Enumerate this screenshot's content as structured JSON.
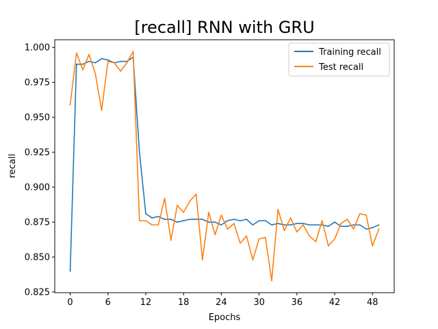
{
  "chart_data": {
    "type": "line",
    "title": "[recall] RNN with GRU",
    "xlabel": "Epochs",
    "ylabel": "recall",
    "xlim": [
      -2.45,
      51.45
    ],
    "ylim": [
      0.8245,
      1.0055
    ],
    "xticks": [
      0,
      6,
      12,
      18,
      24,
      30,
      36,
      42,
      48
    ],
    "yticks": [
      0.825,
      0.85,
      0.875,
      0.9,
      0.925,
      0.95,
      0.975,
      1.0
    ],
    "ytick_labels": [
      "0.825",
      "0.850",
      "0.875",
      "0.900",
      "0.925",
      "0.950",
      "0.975",
      "1.000"
    ],
    "grid": false,
    "legend_position": "top-right",
    "x": [
      0,
      1,
      2,
      3,
      4,
      5,
      6,
      7,
      8,
      9,
      10,
      11,
      12,
      13,
      14,
      15,
      16,
      17,
      18,
      19,
      20,
      21,
      22,
      23,
      24,
      25,
      26,
      27,
      28,
      29,
      30,
      31,
      32,
      33,
      34,
      35,
      36,
      37,
      38,
      39,
      40,
      41,
      42,
      43,
      44,
      45,
      46,
      47,
      48,
      49
    ],
    "series": [
      {
        "name": "Training recall",
        "color": "#1f77b4",
        "values": [
          0.84,
          0.988,
          0.988,
          0.99,
          0.989,
          0.992,
          0.991,
          0.989,
          0.99,
          0.99,
          0.993,
          0.925,
          0.881,
          0.878,
          0.879,
          0.877,
          0.877,
          0.875,
          0.876,
          0.877,
          0.877,
          0.877,
          0.875,
          0.875,
          0.873,
          0.876,
          0.877,
          0.876,
          0.877,
          0.873,
          0.876,
          0.876,
          0.873,
          0.874,
          0.873,
          0.873,
          0.874,
          0.874,
          0.873,
          0.873,
          0.873,
          0.872,
          0.875,
          0.872,
          0.872,
          0.873,
          0.873,
          0.87,
          0.871,
          0.873
        ]
      },
      {
        "name": "Test recall",
        "color": "#ff7f0e",
        "values": [
          0.959,
          0.996,
          0.984,
          0.995,
          0.981,
          0.955,
          0.99,
          0.989,
          0.983,
          0.989,
          0.997,
          0.876,
          0.876,
          0.873,
          0.873,
          0.892,
          0.862,
          0.887,
          0.882,
          0.89,
          0.895,
          0.848,
          0.882,
          0.866,
          0.88,
          0.87,
          0.874,
          0.86,
          0.865,
          0.848,
          0.863,
          0.864,
          0.833,
          0.884,
          0.869,
          0.878,
          0.868,
          0.873,
          0.865,
          0.861,
          0.876,
          0.858,
          0.863,
          0.874,
          0.877,
          0.87,
          0.881,
          0.88,
          0.858,
          0.87
        ]
      }
    ]
  }
}
